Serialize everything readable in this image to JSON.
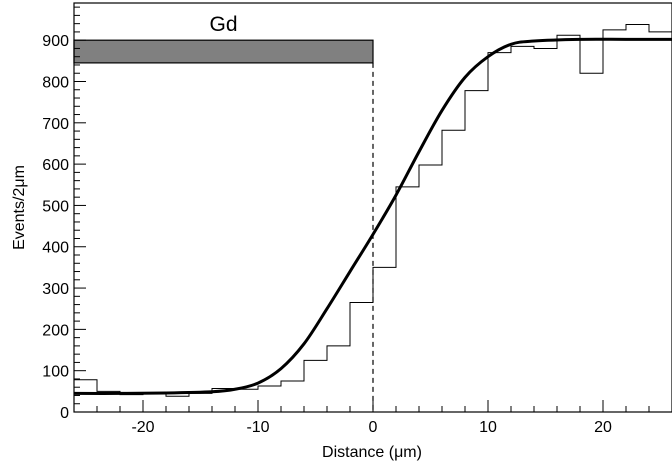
{
  "chart_data": {
    "type": "line",
    "title": "",
    "xlabel": "Distance (μm)",
    "ylabel": "Events/2μm",
    "xlim": [
      -26,
      26
    ],
    "ylim": [
      0,
      990
    ],
    "x_ticks": [
      -20,
      -10,
      0,
      10,
      20
    ],
    "x_tick_labels": [
      "-20",
      "-10",
      "0",
      "10",
      "20"
    ],
    "y_ticks": [
      0,
      100,
      200,
      300,
      400,
      500,
      600,
      700,
      800,
      900
    ],
    "y_tick_labels": [
      "0",
      "100",
      "200",
      "300",
      "400",
      "500",
      "600",
      "700",
      "800",
      "900"
    ],
    "grid": false,
    "series": [
      {
        "kind": "histogram",
        "bin_edges": [
          -26,
          -24,
          -22,
          -20,
          -18,
          -16,
          -14,
          -12,
          -10,
          -8,
          -6,
          -4,
          -2,
          0,
          2,
          4,
          6,
          8,
          10,
          12,
          14,
          16,
          18,
          20,
          22,
          24,
          26
        ],
        "counts": [
          78,
          50,
          42,
          47,
          38,
          45,
          57,
          55,
          63,
          75,
          125,
          160,
          265,
          350,
          545,
          598,
          682,
          778,
          870,
          885,
          880,
          912,
          820,
          925,
          938,
          920
        ],
        "color": "#000000"
      },
      {
        "kind": "fit-curve",
        "model": "error-function",
        "x": [
          -26,
          -22,
          -18,
          -14,
          -12,
          -10,
          -8,
          -6,
          -4,
          -2,
          0,
          2,
          4,
          6,
          8,
          10,
          12,
          14,
          18,
          22,
          26
        ],
        "y": [
          45,
          45,
          46,
          49,
          55,
          70,
          105,
          165,
          250,
          340,
          430,
          525,
          630,
          730,
          810,
          860,
          890,
          898,
          902,
          902,
          902
        ],
        "color": "#000000"
      }
    ],
    "annotations": [
      {
        "kind": "band",
        "label": "Gd",
        "x_range": [
          -26,
          0
        ],
        "y_range": [
          845,
          900
        ],
        "fill": "#808080"
      },
      {
        "kind": "vertical-line",
        "x": 0,
        "style": "dashed"
      }
    ]
  }
}
